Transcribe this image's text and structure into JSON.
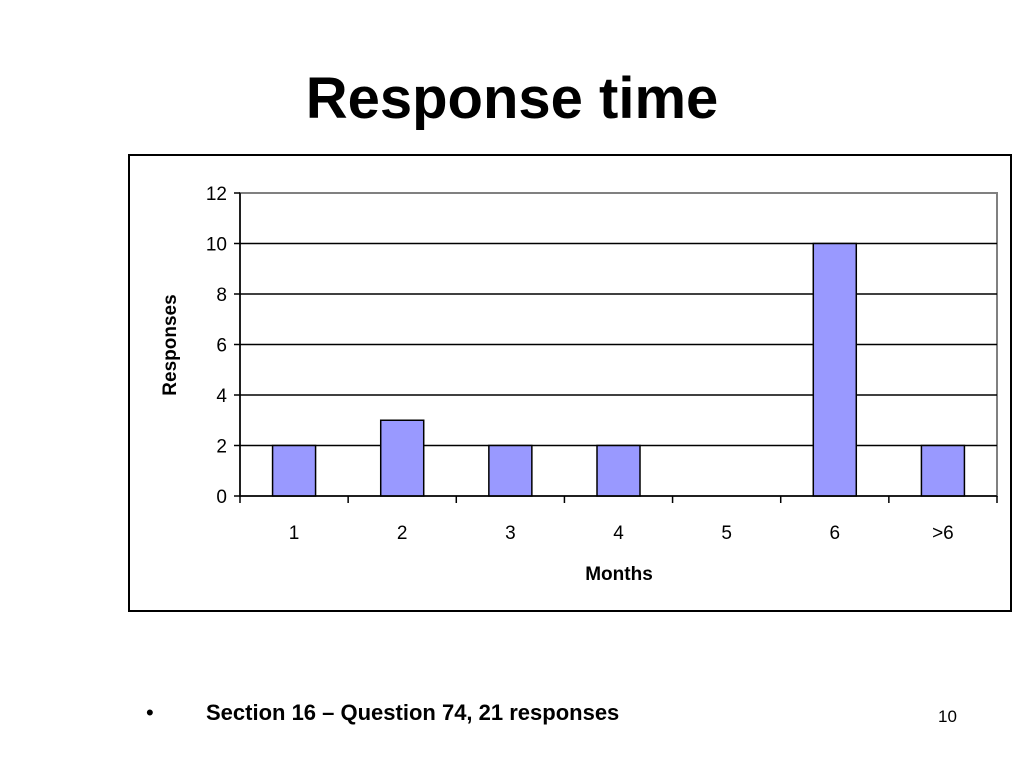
{
  "slide": {
    "title": "Response time",
    "bullet": "•",
    "footer": "Section 16 – Question 74, 21 responses",
    "number": "10"
  },
  "chart_data": {
    "type": "bar",
    "categories": [
      "1",
      "2",
      "3",
      "4",
      "5",
      "6",
      ">6"
    ],
    "series": [
      {
        "values": [
          2,
          3,
          2,
          2,
          0,
          10,
          2
        ],
        "color": "#9999ff"
      }
    ],
    "xlabel": "Months",
    "ylabel": "Responses",
    "ylim": [
      0,
      12
    ],
    "yticks": [
      0,
      2,
      4,
      6,
      8,
      10,
      12
    ],
    "grid": true,
    "legend": "none"
  }
}
